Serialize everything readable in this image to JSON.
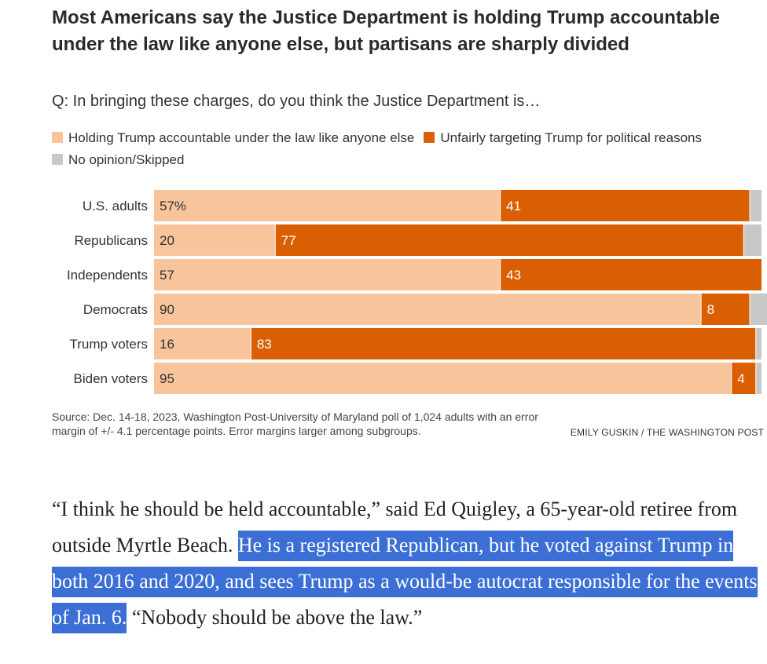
{
  "title": "Most Americans say the Justice Department is holding Trump accountable under the law like anyone else, but partisans are sharply divided",
  "subtitle": "Q: In bringing these charges, do you think the Justice Department is…",
  "legend": {
    "accountable": "Holding Trump accountable under the law like anyone else",
    "targeting": "Unfairly targeting Trump for political reasons",
    "no_opinion": "No opinion/Skipped"
  },
  "colors": {
    "accountable": "#f7c49c",
    "targeting": "#d95f02",
    "no_opinion": "#c8c8c8"
  },
  "chart_data": {
    "type": "bar",
    "orientation": "horizontal",
    "stacked": true,
    "categories": [
      "U.S. adults",
      "Republicans",
      "Independents",
      "Democrats",
      "Trump voters",
      "Biden voters"
    ],
    "series": [
      {
        "name": "Holding Trump accountable under the law like anyone else",
        "values": [
          57,
          20,
          57,
          90,
          16,
          95
        ],
        "labels": [
          "57%",
          "20",
          "57",
          "90",
          "16",
          "95"
        ]
      },
      {
        "name": "Unfairly targeting Trump for political reasons",
        "values": [
          41,
          77,
          43,
          8,
          83,
          4
        ],
        "labels": [
          "41",
          "77",
          "43",
          "8",
          "83",
          "4"
        ]
      },
      {
        "name": "No opinion/Skipped",
        "values": [
          2,
          3,
          0,
          3,
          1,
          1
        ]
      }
    ],
    "xlim": [
      0,
      100
    ]
  },
  "source": "Source: Dec. 14-18, 2023, Washington Post-University of Maryland poll of 1,024 adults with an error margin of +/- 4.1 percentage points. Error margins larger among subgroups.",
  "credit": "EMILY GUSKIN / THE WASHINGTON POST",
  "article": {
    "part1": "“I think he should be held accountable,” said Ed Quigley, a 65-year-old retiree from outside Myrtle Beach. ",
    "highlighted": "He is a registered Republican, but he voted against Trump in both 2016 and 2020, and sees Trump as a would-be autocrat responsible for the events of Jan. 6.",
    "part2": " “Nobody should be above the law.”"
  }
}
